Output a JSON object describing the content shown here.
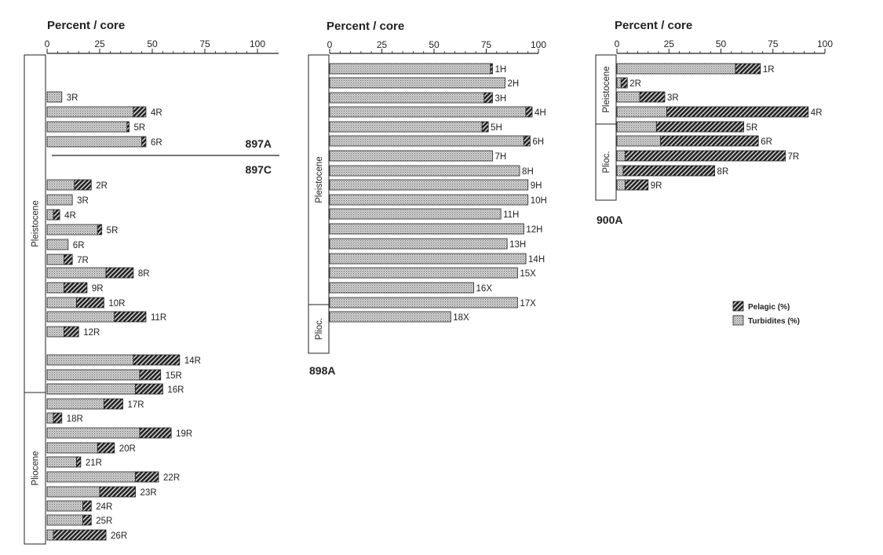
{
  "chart_data": [
    {
      "type": "bar",
      "stacked": true,
      "orientation": "horizontal",
      "title": "Percent / core",
      "sites": [
        "897A",
        "897C"
      ],
      "xlim": [
        0,
        100
      ],
      "xticks": [
        "0",
        "25",
        "50",
        "75",
        "100"
      ],
      "epochs": [
        "Pleistocene",
        "Pliocene"
      ],
      "series": [
        {
          "name": "Turbidites (%)",
          "key": "turb"
        },
        {
          "name": "Pelagic (%)",
          "key": "pel"
        }
      ],
      "bars": [
        {
          "label": "3R",
          "turb": 7,
          "pel": 0
        },
        {
          "label": "4R",
          "turb": 41,
          "pel": 6
        },
        {
          "label": "5R",
          "turb": 38,
          "pel": 1
        },
        {
          "label": "6R",
          "turb": 45,
          "pel": 2
        },
        {
          "label": "2R",
          "turb": 13,
          "pel": 8
        },
        {
          "label": "3R",
          "turb": 12,
          "pel": 0
        },
        {
          "label": "4R",
          "turb": 3,
          "pel": 3
        },
        {
          "label": "5R",
          "turb": 24,
          "pel": 2
        },
        {
          "label": "6R",
          "turb": 10,
          "pel": 0
        },
        {
          "label": "7R",
          "turb": 8,
          "pel": 4
        },
        {
          "label": "8R",
          "turb": 28,
          "pel": 13
        },
        {
          "label": "9R",
          "turb": 8,
          "pel": 11
        },
        {
          "label": "10R",
          "turb": 14,
          "pel": 13
        },
        {
          "label": "11R",
          "turb": 32,
          "pel": 15
        },
        {
          "label": "12R",
          "turb": 8,
          "pel": 7
        },
        {
          "label": "14R",
          "turb": 41,
          "pel": 22
        },
        {
          "label": "15R",
          "turb": 44,
          "pel": 10
        },
        {
          "label": "16R",
          "turb": 42,
          "pel": 13
        },
        {
          "label": "17R",
          "turb": 27,
          "pel": 9
        },
        {
          "label": "18R",
          "turb": 3,
          "pel": 4
        },
        {
          "label": "19R",
          "turb": 44,
          "pel": 15
        },
        {
          "label": "20R",
          "turb": 24,
          "pel": 8
        },
        {
          "label": "21R",
          "turb": 14,
          "pel": 2
        },
        {
          "label": "22R",
          "turb": 42,
          "pel": 11
        },
        {
          "label": "23R",
          "turb": 25,
          "pel": 17
        },
        {
          "label": "24R",
          "turb": 17,
          "pel": 4
        },
        {
          "label": "25R",
          "turb": 17,
          "pel": 4
        },
        {
          "label": "26R",
          "turb": 3,
          "pel": 25
        }
      ]
    },
    {
      "type": "bar",
      "stacked": true,
      "orientation": "horizontal",
      "title": "Percent / core",
      "site": "898A",
      "xlim": [
        0,
        100
      ],
      "xticks": [
        "0",
        "25",
        "50",
        "75",
        "100"
      ],
      "epochs": [
        "Pleistocene",
        "Plioc."
      ],
      "bars": [
        {
          "label": "1H",
          "turb": 77,
          "pel": 1
        },
        {
          "label": "2H",
          "turb": 84,
          "pel": 0
        },
        {
          "label": "3H",
          "turb": 74,
          "pel": 4
        },
        {
          "label": "4H",
          "turb": 94,
          "pel": 3
        },
        {
          "label": "5H",
          "turb": 73,
          "pel": 3
        },
        {
          "label": "6H",
          "turb": 93,
          "pel": 3
        },
        {
          "label": "7H",
          "turb": 78,
          "pel": 0
        },
        {
          "label": "8H",
          "turb": 91,
          "pel": 0
        },
        {
          "label": "9H",
          "turb": 95,
          "pel": 0
        },
        {
          "label": "10H",
          "turb": 95,
          "pel": 0
        },
        {
          "label": "11H",
          "turb": 82,
          "pel": 0
        },
        {
          "label": "12H",
          "turb": 93,
          "pel": 0
        },
        {
          "label": "13H",
          "turb": 85,
          "pel": 0
        },
        {
          "label": "14H",
          "turb": 94,
          "pel": 0
        },
        {
          "label": "15X",
          "turb": 90,
          "pel": 0
        },
        {
          "label": "16X",
          "turb": 69,
          "pel": 0
        },
        {
          "label": "17X",
          "turb": 90,
          "pel": 0
        },
        {
          "label": "18X",
          "turb": 58,
          "pel": 0
        }
      ]
    },
    {
      "type": "bar",
      "stacked": true,
      "orientation": "horizontal",
      "title": "Percent / core",
      "site": "900A",
      "xlim": [
        0,
        100
      ],
      "xticks": [
        "0",
        "25",
        "50",
        "75",
        "100"
      ],
      "epochs": [
        "Pleistocene",
        "Plioc."
      ],
      "bars": [
        {
          "label": "1R",
          "turb": 57,
          "pel": 12
        },
        {
          "label": "2R",
          "turb": 2,
          "pel": 3
        },
        {
          "label": "3R",
          "turb": 11,
          "pel": 12
        },
        {
          "label": "4R",
          "turb": 24,
          "pel": 68
        },
        {
          "label": "5R",
          "turb": 19,
          "pel": 42
        },
        {
          "label": "6R",
          "turb": 21,
          "pel": 47
        },
        {
          "label": "7R",
          "turb": 4,
          "pel": 77
        },
        {
          "label": "8R",
          "turb": 3,
          "pel": 44
        },
        {
          "label": "9R",
          "turb": 4,
          "pel": 11
        }
      ]
    }
  ],
  "legend": {
    "items": [
      {
        "label": "Pelagic (%)",
        "key": "pel"
      },
      {
        "label": "Turbidites (%)",
        "key": "turb"
      }
    ]
  }
}
